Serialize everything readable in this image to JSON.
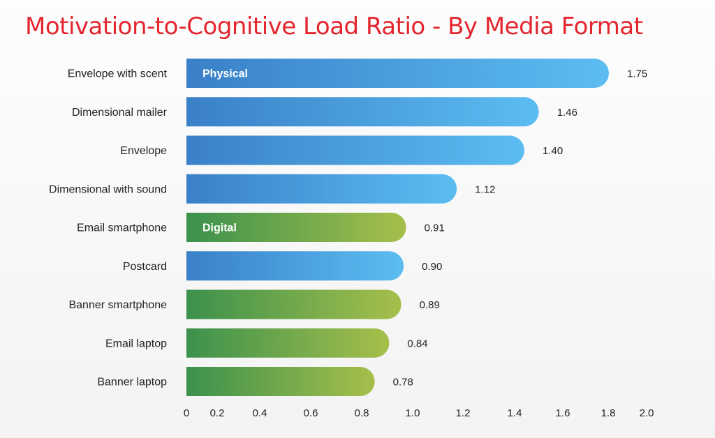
{
  "chart_data": {
    "type": "bar",
    "orientation": "horizontal",
    "title": "Motivation-to-Cognitive Load Ratio - By Media Format",
    "xlabel": "",
    "ylabel": "",
    "xlim": [
      0,
      2.0
    ],
    "grid": false,
    "categories": [
      "Envelope with scent",
      "Dimensional mailer",
      "Envelope",
      "Dimensional with sound",
      "Email smartphone",
      "Postcard",
      "Banner smartphone",
      "Email laptop",
      "Banner laptop"
    ],
    "values": [
      1.75,
      1.46,
      1.4,
      1.12,
      0.91,
      0.9,
      0.89,
      0.84,
      0.78
    ],
    "value_labels": [
      "1.75",
      "1.46",
      "1.40",
      "1.12",
      "0.91",
      "0.90",
      "0.89",
      "0.84",
      "0.78"
    ],
    "groups": [
      "Physical",
      "Physical",
      "Physical",
      "Physical",
      "Digital",
      "Physical",
      "Digital",
      "Digital",
      "Digital"
    ],
    "group_legend": {
      "Physical": {
        "label": "Physical",
        "color_start": "#3a80c8",
        "color_end": "#5cbdf1",
        "shown_on_bar": 0
      },
      "Digital": {
        "label": "Digital",
        "color_start": "#3c914d",
        "color_end": "#a6bf4b",
        "shown_on_bar": 4
      }
    },
    "x_ticks": [
      0,
      0.2,
      0.4,
      0.6,
      0.8,
      1.0,
      1.2,
      1.4,
      1.6,
      1.8,
      2.0
    ],
    "x_tick_labels": [
      "0",
      "0.2",
      "0.4",
      "0.6",
      "0.8",
      "1.0",
      "1.2",
      "1.4",
      "1.6",
      "1.8",
      "2.0"
    ]
  },
  "colors": {
    "title": "#e3262e",
    "text": "#222222",
    "physical_start": "#3a80c8",
    "physical_end": "#5cbdf1",
    "digital_start": "#3c914d",
    "digital_end": "#a6bf4b"
  }
}
